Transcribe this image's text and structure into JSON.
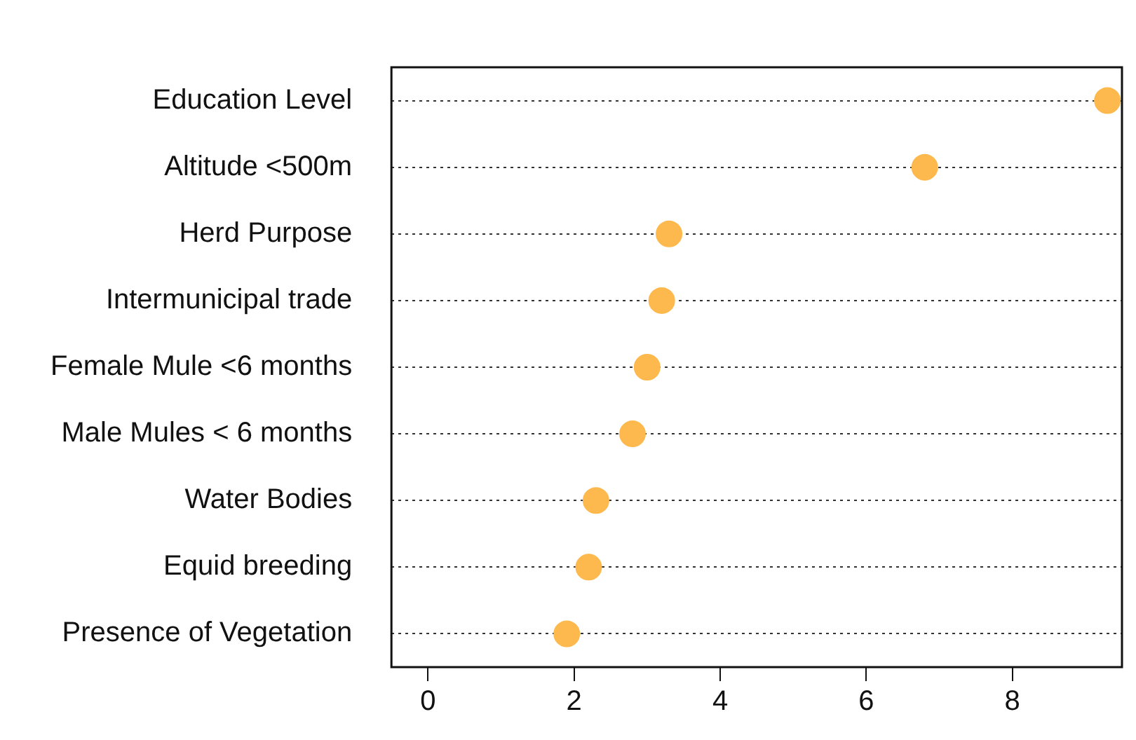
{
  "chart_data": {
    "type": "scatter",
    "orientation": "horizontal",
    "categories": [
      "Education Level",
      "Altitude <500m",
      "Herd Purpose",
      "Intermunicipal trade",
      "Female Mule <6 months",
      "Male Mules < 6 months",
      "Water Bodies",
      "Equid breeding",
      "Presence of Vegetation"
    ],
    "values": [
      9.3,
      6.8,
      3.3,
      3.2,
      3.0,
      2.8,
      2.3,
      2.2,
      1.9
    ],
    "color": "#fdb94d",
    "xlim": [
      -0.5,
      9.5
    ],
    "xticks": [
      0,
      2,
      4,
      6,
      8
    ],
    "grid": "y",
    "marker": "circle",
    "legend": false
  }
}
